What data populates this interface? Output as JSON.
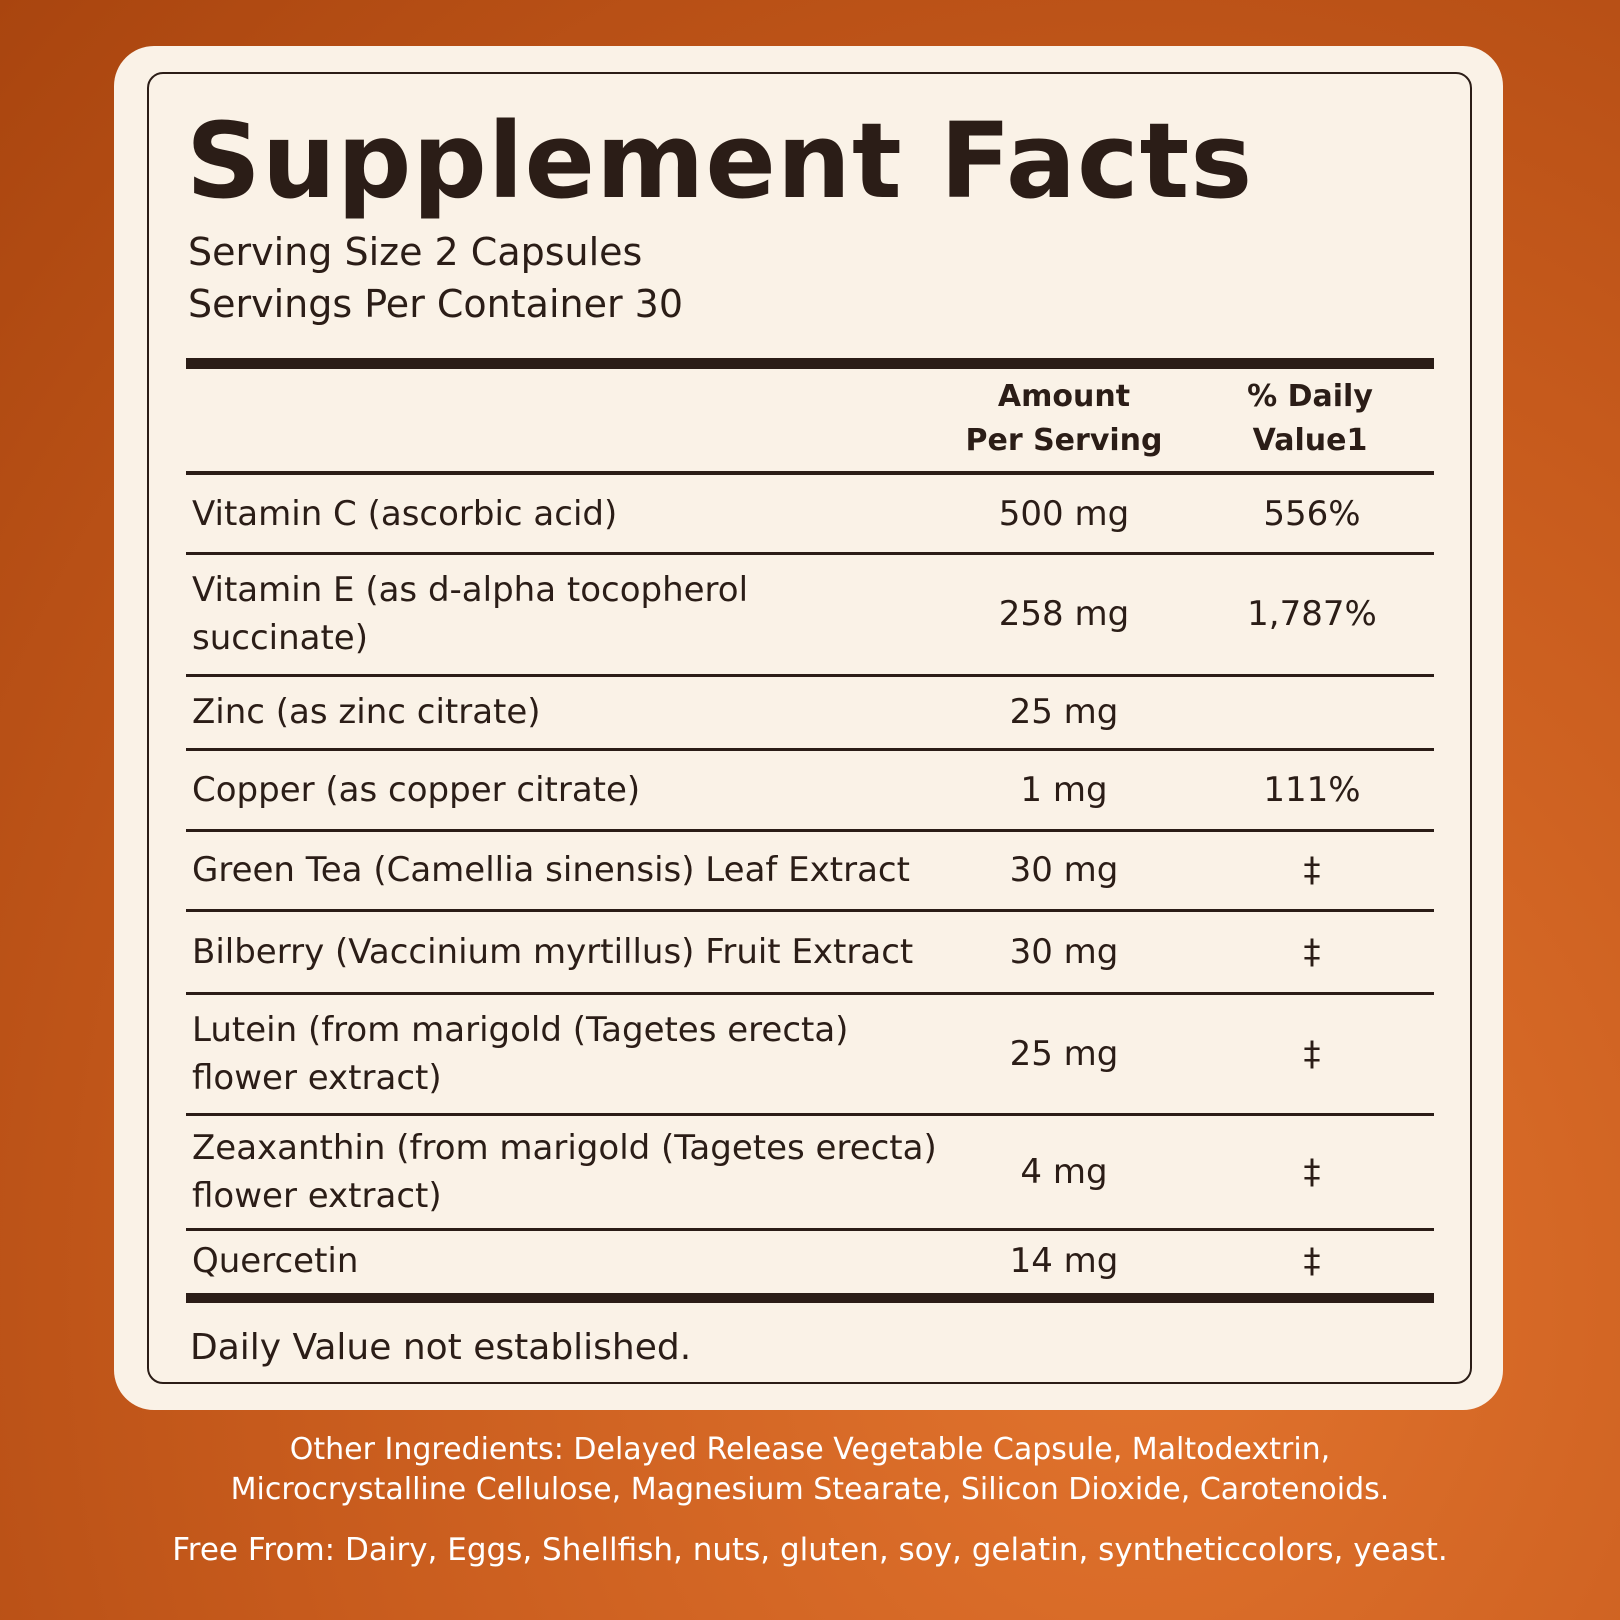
{
  "label": {
    "title": "Supplement Facts",
    "serving_size": "Serving Size 2 Capsules",
    "servings_per_container": "Servings Per Container 30",
    "header": {
      "amount": "Amount\nPer Serving",
      "daily_value": "% Daily\nValue1"
    },
    "rows": [
      {
        "name": "Vitamin C (ascorbic acid)",
        "amount": "500 mg",
        "dv": "556%"
      },
      {
        "name": "Vitamin E (as d-alpha tocopherol\nsuccinate)",
        "amount": "258 mg",
        "dv": "1,787%"
      },
      {
        "name": "Zinc (as zinc citrate)",
        "amount": "25 mg",
        "dv": null
      },
      {
        "name": "Copper (as copper citrate)",
        "amount": "1 mg",
        "dv": "111%"
      },
      {
        "name": "Green Tea (Camellia sinensis) Leaf Extract",
        "amount": "30 mg",
        "dv": "‡"
      },
      {
        "name": "Bilberry (Vaccinium myrtillus) Fruit Extract",
        "amount": "30 mg",
        "dv": "‡"
      },
      {
        "name": "Lutein (from marigold (Tagetes erecta)\nflower extract)",
        "amount": "25 mg",
        "dv": "‡"
      },
      {
        "name": "Zeaxanthin (from marigold (Tagetes erecta)\nflower extract)",
        "amount": "4 mg",
        "dv": "‡"
      },
      {
        "name": "Quercetin",
        "amount": "14 mg",
        "dv": "‡"
      }
    ],
    "footnote": "Daily Value not established."
  },
  "other_ingredients": "Other Ingredients: Delayed Release Vegetable Capsule, Maltodextrin,\nMicrocrystalline Cellulose, Magnesium Stearate, Silicon Dioxide, Carotenoids.",
  "free_from": "Free From: Dairy, Eggs, Shellfish, nuts, gluten, soy, gelatin, syntheticcolors, yeast."
}
